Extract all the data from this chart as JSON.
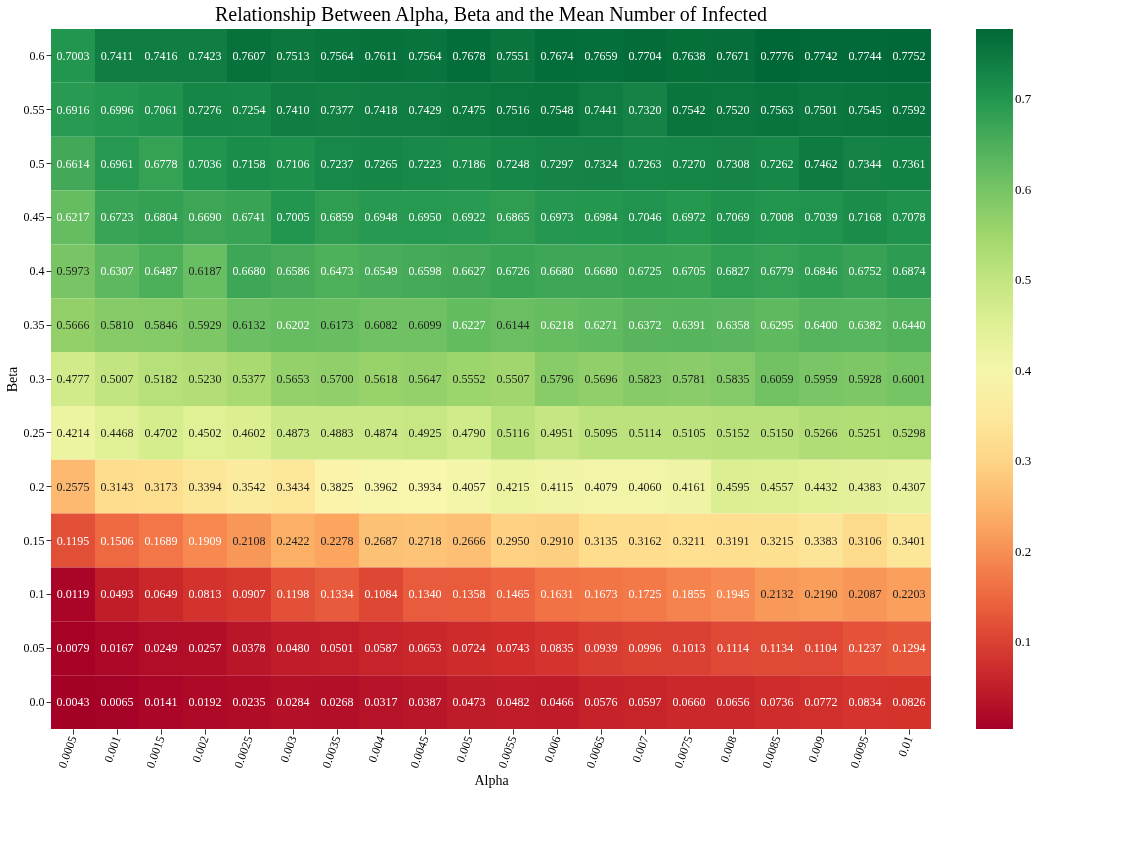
{
  "chart_data": {
    "type": "heatmap",
    "title": "Relationship Between Alpha, Beta and the Mean Number of Infected",
    "xlabel": "Alpha",
    "ylabel": "Beta",
    "categories": [
      "0.0005",
      "0.001",
      "0.0015",
      "0.002",
      "0.0025",
      "0.003",
      "0.0035",
      "0.004",
      "0.0045",
      "0.005",
      "0.0055",
      "0.006",
      "0.0065",
      "0.007",
      "0.0075",
      "0.008",
      "0.0085",
      "0.009",
      "0.0095",
      "0.01"
    ],
    "y_categories": [
      "0.6",
      "0.55",
      "0.5",
      "0.45",
      "0.4",
      "0.35",
      "0.3",
      "0.25",
      "0.2",
      "0.15",
      "0.1",
      "0.05",
      "0.0"
    ],
    "cells": [
      [
        0.7003,
        0.7411,
        0.7416,
        0.7423,
        0.7607,
        0.7513,
        0.7564,
        0.7611,
        0.7564,
        0.7678,
        0.7551,
        0.7674,
        0.7659,
        0.7704,
        0.7638,
        0.7671,
        0.7776,
        0.7742,
        0.7744,
        0.7752
      ],
      [
        0.6916,
        0.6996,
        0.7061,
        0.7276,
        0.7254,
        0.741,
        0.7377,
        0.7418,
        0.7429,
        0.7475,
        0.7516,
        0.7548,
        0.7441,
        0.732,
        0.7542,
        0.752,
        0.7563,
        0.7501,
        0.7545,
        0.7592
      ],
      [
        0.6614,
        0.6961,
        0.6778,
        0.7036,
        0.7158,
        0.7106,
        0.7237,
        0.7265,
        0.7223,
        0.7186,
        0.7248,
        0.7297,
        0.7324,
        0.7263,
        0.727,
        0.7308,
        0.7262,
        0.7462,
        0.7344,
        0.7361
      ],
      [
        0.6217,
        0.6723,
        0.6804,
        0.669,
        0.6741,
        0.7005,
        0.6859,
        0.6948,
        0.695,
        0.6922,
        0.6865,
        0.6973,
        0.6984,
        0.7046,
        0.6972,
        0.7069,
        0.7008,
        0.7039,
        0.7168,
        0.7078
      ],
      [
        0.5973,
        0.6307,
        0.6487,
        0.6187,
        0.668,
        0.6586,
        0.6473,
        0.6549,
        0.6598,
        0.6627,
        0.6726,
        0.668,
        0.668,
        0.6725,
        0.6705,
        0.6827,
        0.6779,
        0.6846,
        0.6752,
        0.6874
      ],
      [
        0.5666,
        0.581,
        0.5846,
        0.5929,
        0.6132,
        0.6202,
        0.6173,
        0.6082,
        0.6099,
        0.6227,
        0.6144,
        0.6218,
        0.6271,
        0.6372,
        0.6391,
        0.6358,
        0.6295,
        0.64,
        0.6382,
        0.644
      ],
      [
        0.4777,
        0.5007,
        0.5182,
        0.523,
        0.5377,
        0.5653,
        0.57,
        0.5618,
        0.5647,
        0.5552,
        0.5507,
        0.5796,
        0.5696,
        0.5823,
        0.5781,
        0.5835,
        0.6059,
        0.5959,
        0.5928,
        0.6001
      ],
      [
        0.4214,
        0.4468,
        0.4702,
        0.4502,
        0.4602,
        0.4873,
        0.4883,
        0.4874,
        0.4925,
        0.479,
        0.5116,
        0.4951,
        0.5095,
        0.5114,
        0.5105,
        0.5152,
        0.515,
        0.5266,
        0.5251,
        0.5298
      ],
      [
        0.2575,
        0.3143,
        0.3173,
        0.3394,
        0.3542,
        0.3434,
        0.3825,
        0.3962,
        0.3934,
        0.4057,
        0.4215,
        0.4115,
        0.4079,
        0.406,
        0.4161,
        0.4595,
        0.4557,
        0.4432,
        0.4383,
        0.4307
      ],
      [
        0.1195,
        0.1506,
        0.1689,
        0.1909,
        0.2108,
        0.2422,
        0.2278,
        0.2687,
        0.2718,
        0.2666,
        0.295,
        0.291,
        0.3135,
        0.3162,
        0.3211,
        0.3191,
        0.3215,
        0.3383,
        0.3106,
        0.3401
      ],
      [
        0.0119,
        0.0493,
        0.0649,
        0.0813,
        0.0907,
        0.1198,
        0.1334,
        0.1084,
        0.134,
        0.1358,
        0.1465,
        0.1631,
        0.1673,
        0.1725,
        0.1855,
        0.1945,
        0.2132,
        0.219,
        0.2087,
        0.2203
      ],
      [
        0.0079,
        0.0167,
        0.0249,
        0.0257,
        0.0378,
        0.048,
        0.0501,
        0.0587,
        0.0653,
        0.0724,
        0.0743,
        0.0835,
        0.0939,
        0.0996,
        0.1013,
        0.1114,
        0.1134,
        0.1104,
        0.1237,
        0.1294
      ],
      [
        0.0043,
        0.0065,
        0.0141,
        0.0192,
        0.0235,
        0.0284,
        0.0268,
        0.0317,
        0.0387,
        0.0473,
        0.0482,
        0.0466,
        0.0576,
        0.0597,
        0.066,
        0.0656,
        0.0736,
        0.0772,
        0.0834,
        0.0826
      ]
    ],
    "cell_labels": [
      [
        "0.7003",
        "0.7411",
        "0.7416",
        "0.7423",
        "0.7607",
        "0.7513",
        "0.7564",
        "0.7611",
        "0.7564",
        "0.7678",
        "0.7551",
        "0.7674",
        "0.7659",
        "0.7704",
        "0.7638",
        "0.7671",
        "0.7776",
        "0.7742",
        "0.7744",
        "0.7752"
      ],
      [
        "0.6916",
        "0.6996",
        "0.7061",
        "0.7276",
        "0.7254",
        "0.7410",
        "0.7377",
        "0.7418",
        "0.7429",
        "0.7475",
        "0.7516",
        "0.7548",
        "0.7441",
        "0.7320",
        "0.7542",
        "0.7520",
        "0.7563",
        "0.7501",
        "0.7545",
        "0.7592"
      ],
      [
        "0.6614",
        "0.6961",
        "0.6778",
        "0.7036",
        "0.7158",
        "0.7106",
        "0.7237",
        "0.7265",
        "0.7223",
        "0.7186",
        "0.7248",
        "0.7297",
        "0.7324",
        "0.7263",
        "0.7270",
        "0.7308",
        "0.7262",
        "0.7462",
        "0.7344",
        "0.7361"
      ],
      [
        "0.6217",
        "0.6723",
        "0.6804",
        "0.6690",
        "0.6741",
        "0.7005",
        "0.6859",
        "0.6948",
        "0.6950",
        "0.6922",
        "0.6865",
        "0.6973",
        "0.6984",
        "0.7046",
        "0.6972",
        "0.7069",
        "0.7008",
        "0.7039",
        "0.7168",
        "0.7078"
      ],
      [
        "0.5973",
        "0.6307",
        "0.6487",
        "0.6187",
        "0.6680",
        "0.6586",
        "0.6473",
        "0.6549",
        "0.6598",
        "0.6627",
        "0.6726",
        "0.6680",
        "0.6680",
        "0.6725",
        "0.6705",
        "0.6827",
        "0.6779",
        "0.6846",
        "0.6752",
        "0.6874"
      ],
      [
        "0.5666",
        "0.5810",
        "0.5846",
        "0.5929",
        "0.6132",
        "0.6202",
        "0.6173",
        "0.6082",
        "0.6099",
        "0.6227",
        "0.6144",
        "0.6218",
        "0.6271",
        "0.6372",
        "0.6391",
        "0.6358",
        "0.6295",
        "0.6400",
        "0.6382",
        "0.6440"
      ],
      [
        "0.4777",
        "0.5007",
        "0.5182",
        "0.5230",
        "0.5377",
        "0.5653",
        "0.5700",
        "0.5618",
        "0.5647",
        "0.5552",
        "0.5507",
        "0.5796",
        "0.5696",
        "0.5823",
        "0.5781",
        "0.5835",
        "0.6059",
        "0.5959",
        "0.5928",
        "0.6001"
      ],
      [
        "0.4214",
        "0.4468",
        "0.4702",
        "0.4502",
        "0.4602",
        "0.4873",
        "0.4883",
        "0.4874",
        "0.4925",
        "0.4790",
        "0.5116",
        "0.4951",
        "0.5095",
        "0.5114",
        "0.5105",
        "0.5152",
        "0.5150",
        "0.5266",
        "0.5251",
        "0.5298"
      ],
      [
        "0.2575",
        "0.3143",
        "0.3173",
        "0.3394",
        "0.3542",
        "0.3434",
        "0.3825",
        "0.3962",
        "0.3934",
        "0.4057",
        "0.4215",
        "0.4115",
        "0.4079",
        "0.4060",
        "0.4161",
        "0.4595",
        "0.4557",
        "0.4432",
        "0.4383",
        "0.4307"
      ],
      [
        "0.1195",
        "0.1506",
        "0.1689",
        "0.1909",
        "0.2108",
        "0.2422",
        "0.2278",
        "0.2687",
        "0.2718",
        "0.2666",
        "0.2950",
        "0.2910",
        "0.3135",
        "0.3162",
        "0.3211",
        "0.3191",
        "0.3215",
        "0.3383",
        "0.3106",
        "0.3401"
      ],
      [
        "0.0119",
        "0.0493",
        "0.0649",
        "0.0813",
        "0.0907",
        "0.1198",
        "0.1334",
        "0.1084",
        "0.1340",
        "0.1358",
        "0.1465",
        "0.1631",
        "0.1673",
        "0.1725",
        "0.1855",
        "0.1945",
        "0.2132",
        "0.2190",
        "0.2087",
        "0.2203"
      ],
      [
        "0.0079",
        "0.0167",
        "0.0249",
        "0.0257",
        "0.0378",
        "0.0480",
        "0.0501",
        "0.0587",
        "0.0653",
        "0.0724",
        "0.0743",
        "0.0835",
        "0.0939",
        "0.0996",
        "0.1013",
        "0.1114",
        "0.1134",
        "0.1104",
        "0.1237",
        "0.1294"
      ],
      [
        "0.0043",
        "0.0065",
        "0.0141",
        "0.0192",
        "0.0235",
        "0.0284",
        "0.0268",
        "0.0317",
        "0.0387",
        "0.0473",
        "0.0482",
        "0.0466",
        "0.0576",
        "0.0597",
        "0.0660",
        "0.0656",
        "0.0736",
        "0.0772",
        "0.0834",
        "0.0826"
      ]
    ],
    "clim": [
      0.0043,
      0.7776
    ],
    "cticks": [
      0.1,
      0.2,
      0.3,
      0.4,
      0.5,
      0.6,
      0.7
    ],
    "data_labels": true
  }
}
